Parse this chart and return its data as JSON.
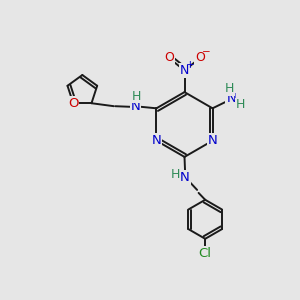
{
  "background_color": "#e6e6e6",
  "atom_colors": {
    "C": "#1a1a1a",
    "N": "#0000cc",
    "O": "#cc0000",
    "H": "#2e8b57",
    "Cl": "#228b22"
  },
  "bond_color": "#1a1a1a",
  "bond_width": 1.4,
  "font_size": 9.5,
  "figsize": [
    3.0,
    3.0
  ],
  "dpi": 100
}
